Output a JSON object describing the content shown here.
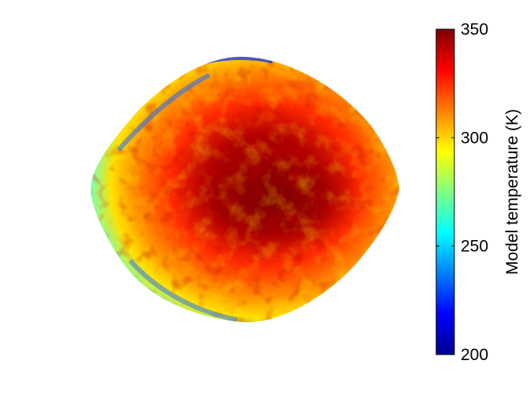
{
  "colorbar": {
    "label": "Model temperature (K)",
    "min": 200,
    "max": 350,
    "ticks": [
      {
        "value": 200,
        "label": "200"
      },
      {
        "value": 250,
        "label": "250"
      },
      {
        "value": 300,
        "label": "300"
      },
      {
        "value": 350,
        "label": "350"
      }
    ],
    "colormap": "jet",
    "stops": [
      "#00008f",
      "#0000ff",
      "#00ffff",
      "#ffff00",
      "#ff0000",
      "#800000"
    ]
  },
  "asteroid": {
    "colors": {
      "cold_edge": "#1e6cff",
      "cool": "#2fd5e6",
      "warm": "#ffd400",
      "hot": "#ff3a00",
      "hottest": "#a00000"
    }
  }
}
